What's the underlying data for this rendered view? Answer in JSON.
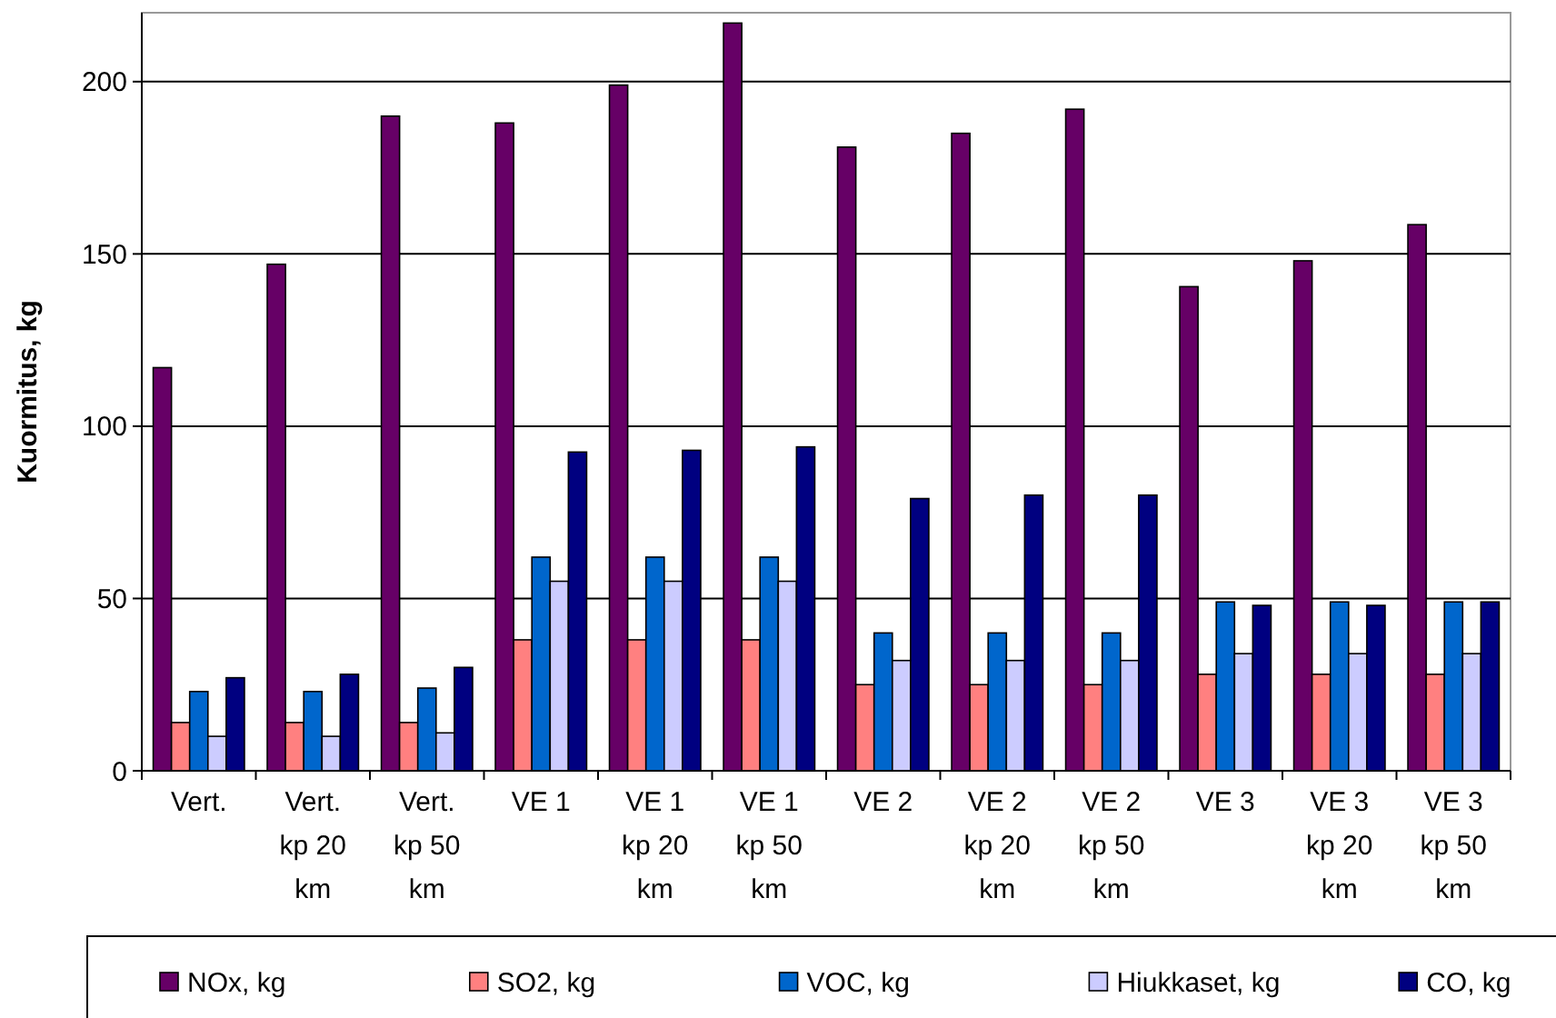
{
  "chart_data": {
    "type": "bar",
    "ylabel": "Kuormitus, kg",
    "categories": [
      "Vert.",
      "Vert. kp 20 km",
      "Vert. kp 50 km",
      "VE 1",
      "VE 1 kp 20 km",
      "VE 1 kp 50 km",
      "VE 2",
      "VE 2 kp 20 km",
      "VE 2 kp 50 km",
      "VE 3",
      "VE 3 kp 20 km",
      "VE 3 kp 50 km"
    ],
    "series": [
      {
        "name": "NOx, kg",
        "color": "#660066",
        "values": [
          117,
          147,
          190,
          188,
          199,
          217,
          181,
          185,
          192,
          140.5,
          148,
          158.5
        ]
      },
      {
        "name": "SO2, kg",
        "color": "#ff8080",
        "values": [
          14,
          14,
          14,
          38,
          38,
          38,
          25,
          25,
          25,
          28,
          28,
          28
        ]
      },
      {
        "name": "VOC, kg",
        "color": "#0066cc",
        "values": [
          23,
          23,
          24,
          62,
          62,
          62,
          40,
          40,
          40,
          49,
          49,
          49
        ]
      },
      {
        "name": "Hiukkaset, kg",
        "color": "#ccccff",
        "values": [
          10,
          10,
          11,
          55,
          55,
          55,
          32,
          32,
          32,
          34,
          34,
          34
        ]
      },
      {
        "name": "CO, kg",
        "color": "#000080",
        "values": [
          27,
          28,
          30,
          92.5,
          93,
          94,
          79,
          80,
          80,
          48,
          48,
          49
        ]
      }
    ],
    "ylim": [
      0,
      220
    ],
    "yticks": [
      0,
      50,
      100,
      150,
      200
    ],
    "grid": "y",
    "legend": "bottom"
  }
}
